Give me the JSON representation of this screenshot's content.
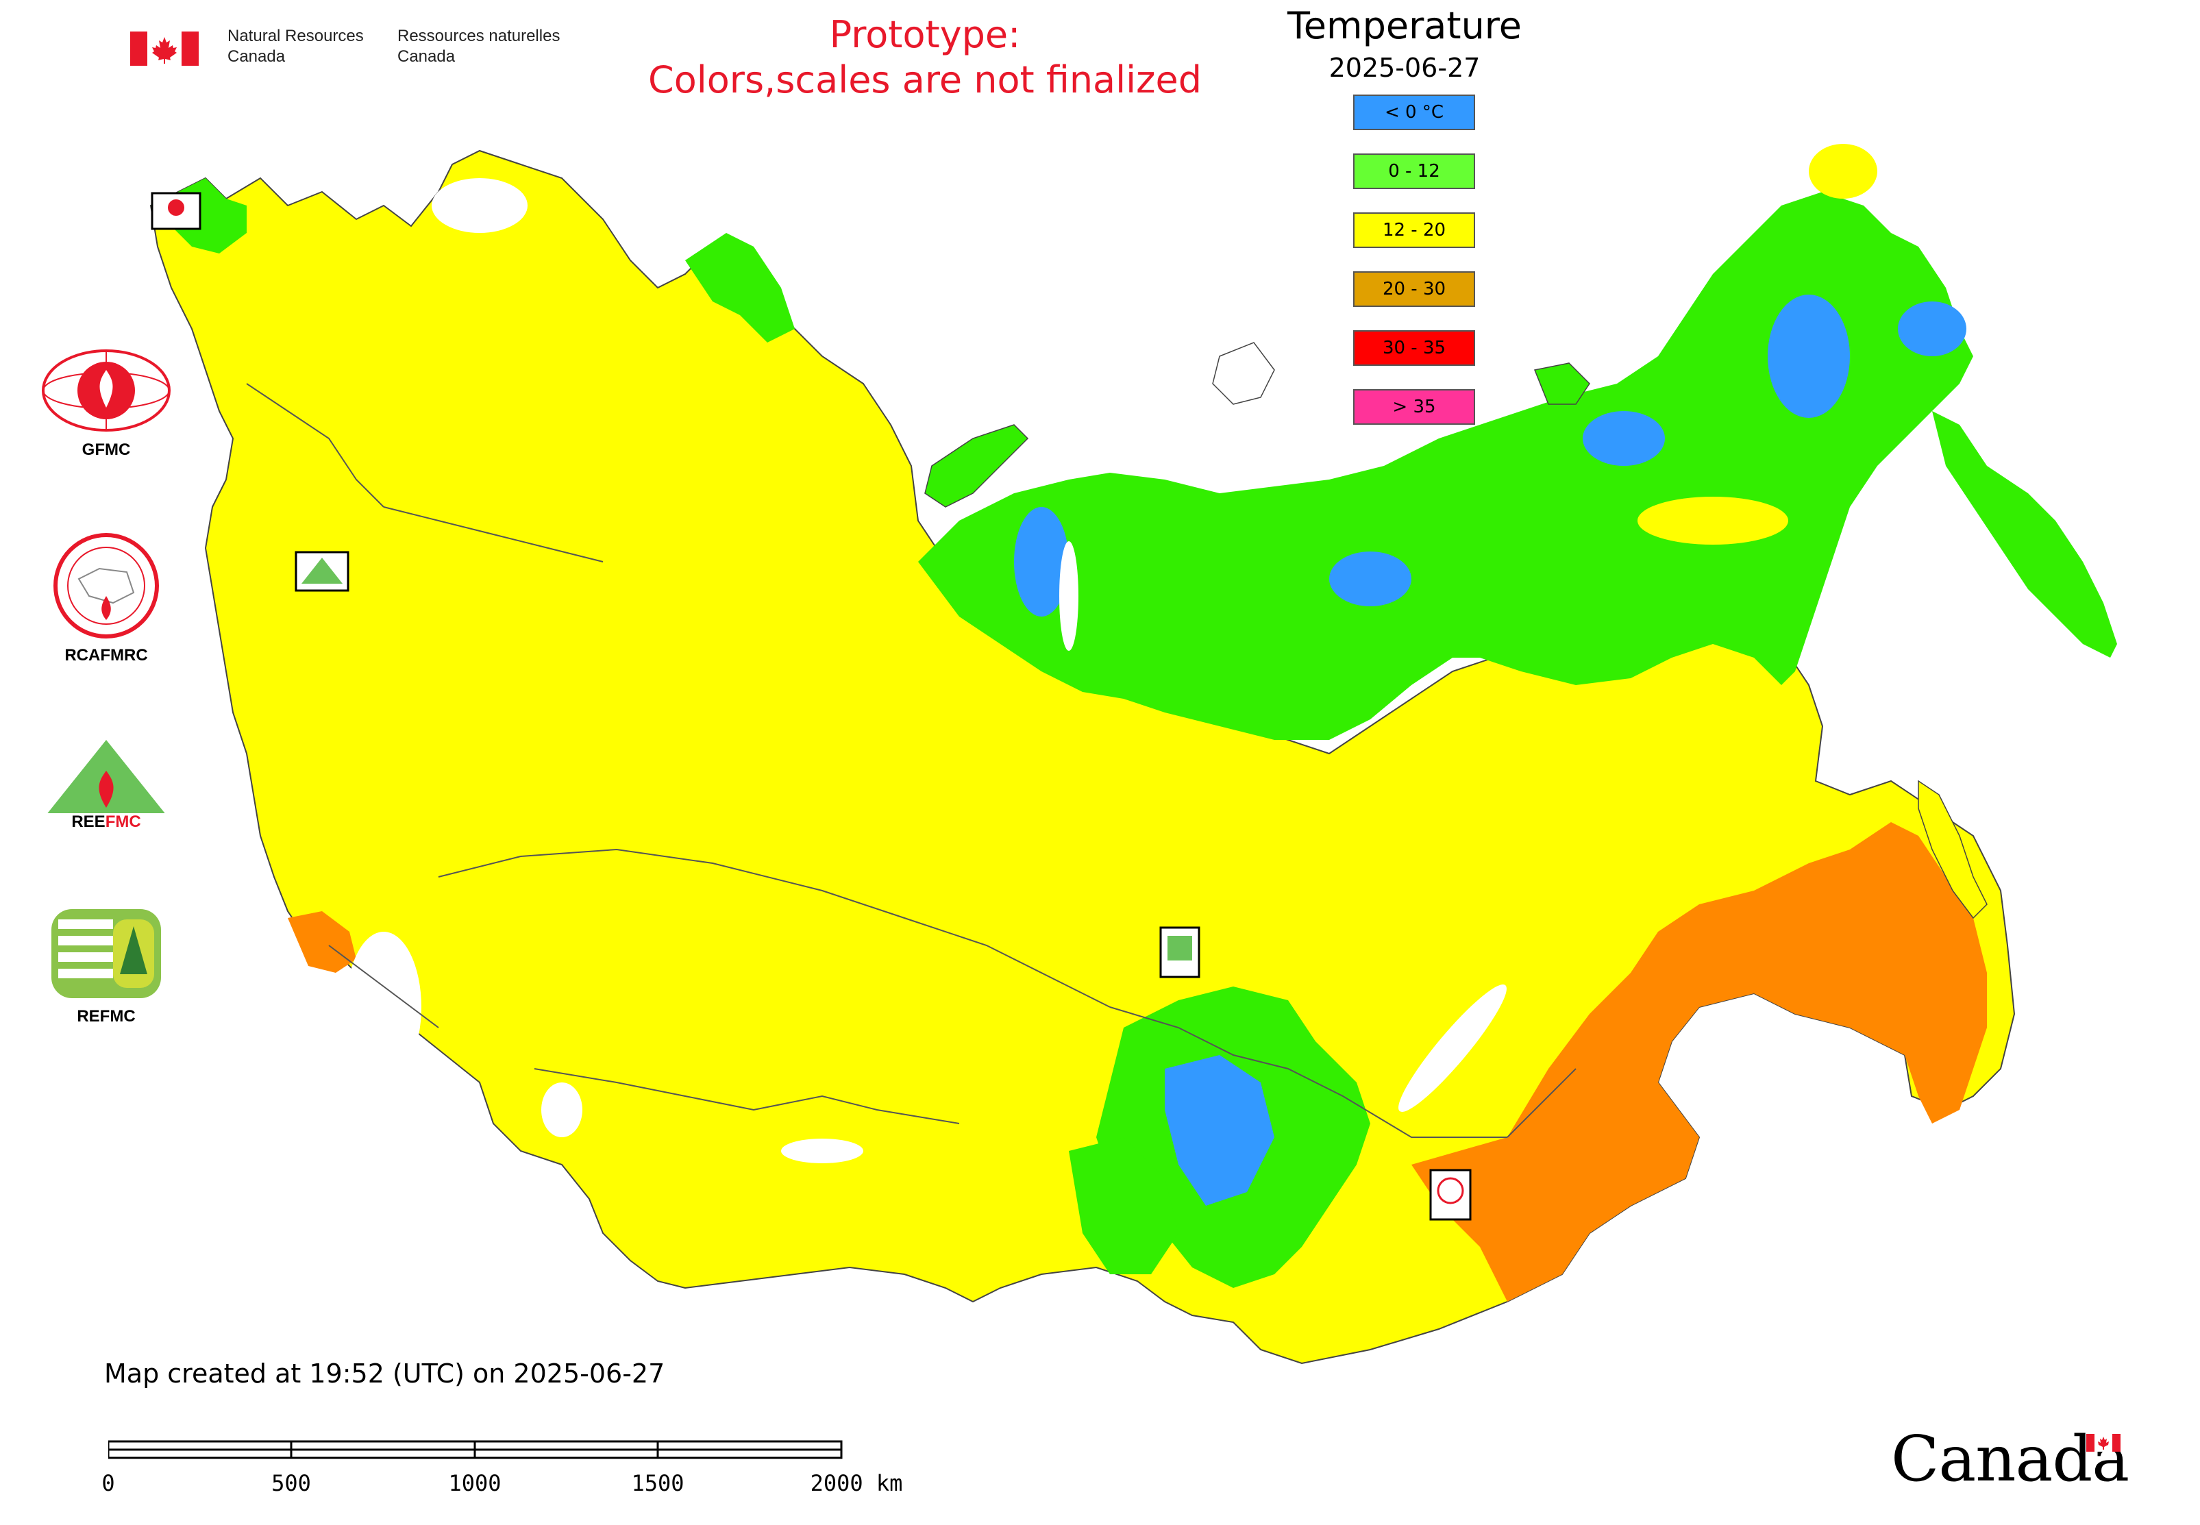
{
  "header": {
    "org_en_line1": "Natural Resources",
    "org_en_line2": "Canada",
    "org_fr_line1": "Ressources naturelles",
    "org_fr_line2": "Canada",
    "prototype_line1": "Prototype:",
    "prototype_line2": "Colors,scales are not finalized"
  },
  "legend": {
    "title": "Temperature",
    "date": "2025-06-27",
    "classes": [
      {
        "label": "< 0 °C",
        "color": "#3399ff"
      },
      {
        "label": "0 - 12",
        "color": "#66ff33"
      },
      {
        "label": "12 - 20",
        "color": "#ffff00"
      },
      {
        "label": "20 - 30",
        "color": "#e0a000"
      },
      {
        "label": "30 - 35",
        "color": "#ff0000"
      },
      {
        "label": "> 35",
        "color": "#ff3399"
      }
    ]
  },
  "logos": {
    "gfmc": "GFMC",
    "rcafmrc": "RCAFMRC",
    "reefmc": "REEFMC",
    "refmc": "REFMC"
  },
  "map": {
    "colors": {
      "cold": "#3399ff",
      "mild": "#33ee00",
      "warm": "#ffff00",
      "hot": "#ff8800",
      "very_hot": "#ff3300",
      "water": "#ffffff",
      "border": "#555555"
    }
  },
  "caption": "Map created at 19:52 (UTC) on 2025-06-27",
  "scale": {
    "labels": [
      "0",
      "500",
      "1000",
      "1500",
      "2000 km"
    ]
  },
  "wordmark": "Canada"
}
